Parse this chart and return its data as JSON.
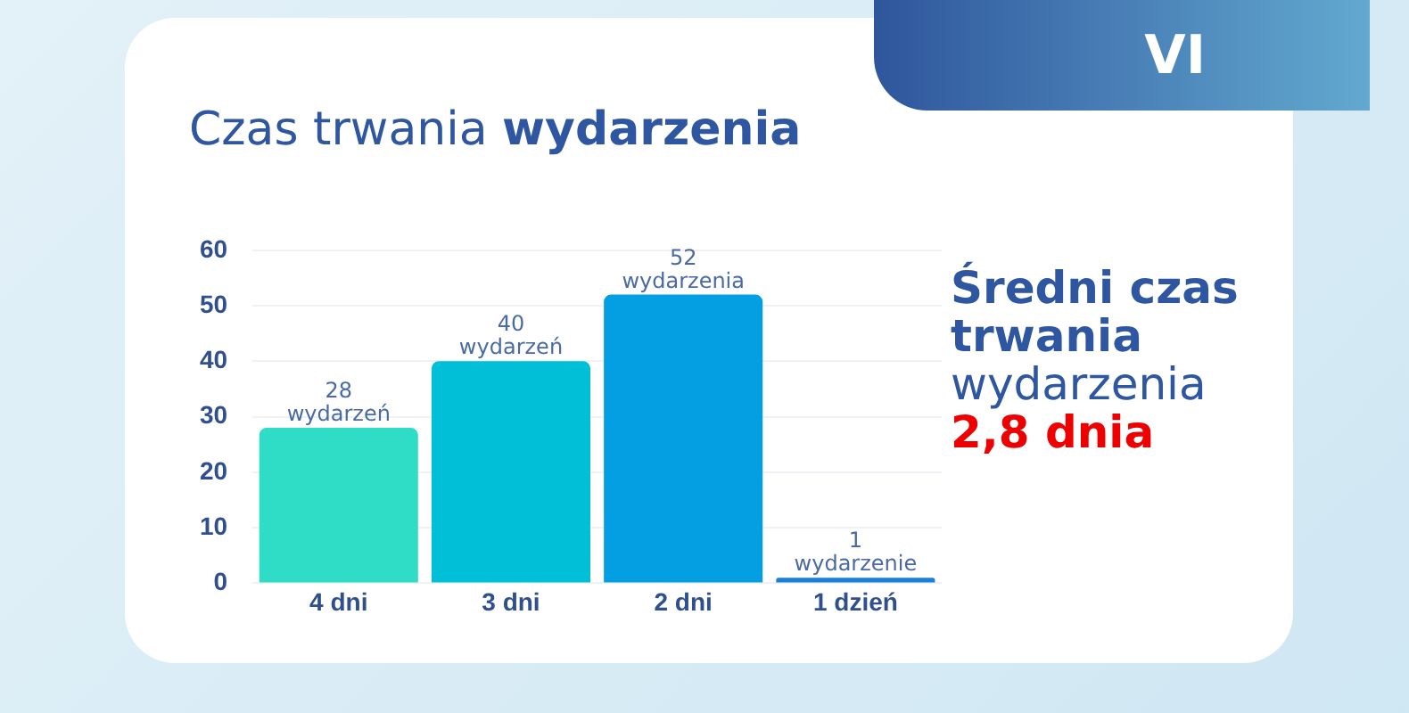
{
  "chart_data": {
    "type": "bar",
    "title": "Czas trwania wydarzenia",
    "categories": [
      "4 dni",
      "3 dni",
      "2 dni",
      "1 dzień"
    ],
    "values": [
      28,
      40,
      52,
      1
    ],
    "colors": [
      "#2fdcc6",
      "#00bfd6",
      "#049fe2",
      "#1a7fd8"
    ],
    "value_labels": [
      "28 wydarzeń",
      "40 wydarzeń",
      "52 wydarzenia",
      "1 wydarzenie"
    ],
    "ylim": [
      0,
      60
    ],
    "yticks": [
      0,
      10,
      20,
      30,
      40,
      50,
      60
    ],
    "grid": "y",
    "annotations": [
      "VI",
      "Średni czas trwania",
      "wydarzenia",
      "2,8 dnia"
    ]
  }
}
